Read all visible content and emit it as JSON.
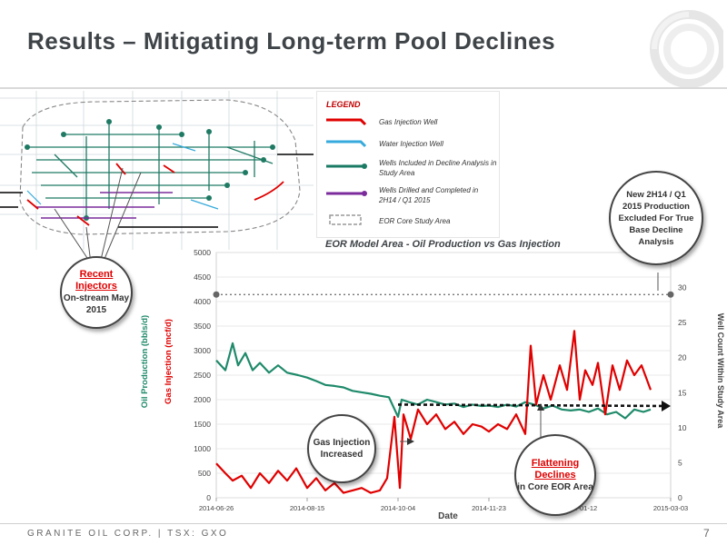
{
  "page": {
    "title": "Results – Mitigating Long-term Pool Declines",
    "footer": "GRANITE OIL CORP. | TSX: GXO",
    "page_number": "7"
  },
  "legend": {
    "title": "LEGEND",
    "items": [
      {
        "label": "Gas Injection Well",
        "color": "#e00000",
        "icon": "arrow-icon"
      },
      {
        "label": "Water Injection Well",
        "color": "#36aadc",
        "icon": "arrow-icon"
      },
      {
        "label": "Wells Included in Decline Analysis in Study Area",
        "color": "#1a7a64",
        "icon": "well-line-icon"
      },
      {
        "label": "Wells Drilled and Completed in 2H14 / Q1 2015",
        "color": "#7b2b9c",
        "icon": "well-line-icon"
      },
      {
        "label": "EOR Core Study Area",
        "color": "#999999",
        "icon": "dashed-box-icon"
      }
    ]
  },
  "callouts": {
    "recent_injectors_title": "Recent Injectors",
    "recent_injectors_body": "On-stream May 2015",
    "new_production": "New 2H14 / Q1 2015 Production Excluded For True Base Decline Analysis",
    "gas_injection": "Gas Injection Increased",
    "flattening_title": "Flattening Declines",
    "flattening_body": "in Core EOR Area"
  },
  "chart_data": {
    "type": "line",
    "title": "EOR Model Area - Oil Production vs Gas Injection",
    "xlabel": "Date",
    "ylabel_left": [
      "Oil Production (bbls/d)",
      "Gas Injection (mcf/d)"
    ],
    "ylabel_right": "Well Count Within Study Area",
    "x_ticks": [
      "2014-06-26",
      "2014-08-15",
      "2014-10-04",
      "2014-11-23",
      "2015-01-12",
      "2015-03-03"
    ],
    "x_range": [
      "2014-06-26",
      "2015-03-03"
    ],
    "ylim_left": [
      0,
      5000
    ],
    "y_ticks_left": [
      0,
      500,
      1000,
      1500,
      2000,
      2500,
      3000,
      3500,
      4000,
      4500,
      5000
    ],
    "ylim_right": [
      0,
      35
    ],
    "y_ticks_right": [
      0,
      5,
      10,
      15,
      20,
      25,
      30,
      35
    ],
    "grid": true,
    "series": [
      {
        "name": "Oil Production (bbls/d)",
        "color": "#1f8a6a",
        "axis": "left",
        "points": [
          [
            "2014-06-26",
            2800
          ],
          [
            "2014-07-01",
            2600
          ],
          [
            "2014-07-05",
            3150
          ],
          [
            "2014-07-08",
            2700
          ],
          [
            "2014-07-12",
            2950
          ],
          [
            "2014-07-16",
            2600
          ],
          [
            "2014-07-20",
            2750
          ],
          [
            "2014-07-25",
            2550
          ],
          [
            "2014-07-30",
            2700
          ],
          [
            "2014-08-04",
            2550
          ],
          [
            "2014-08-10",
            2500
          ],
          [
            "2014-08-15",
            2450
          ],
          [
            "2014-08-20",
            2380
          ],
          [
            "2014-08-25",
            2300
          ],
          [
            "2014-08-30",
            2280
          ],
          [
            "2014-09-04",
            2250
          ],
          [
            "2014-09-09",
            2180
          ],
          [
            "2014-09-14",
            2150
          ],
          [
            "2014-09-19",
            2120
          ],
          [
            "2014-09-24",
            2080
          ],
          [
            "2014-09-29",
            2050
          ],
          [
            "2014-10-04",
            1650
          ],
          [
            "2014-10-06",
            2000
          ],
          [
            "2014-10-10",
            1950
          ],
          [
            "2014-10-15",
            1900
          ],
          [
            "2014-10-20",
            2000
          ],
          [
            "2014-10-25",
            1950
          ],
          [
            "2014-10-30",
            1900
          ],
          [
            "2014-11-04",
            1920
          ],
          [
            "2014-11-09",
            1850
          ],
          [
            "2014-11-14",
            1900
          ],
          [
            "2014-11-19",
            1870
          ],
          [
            "2014-11-23",
            1880
          ],
          [
            "2014-11-28",
            1850
          ],
          [
            "2014-12-03",
            1900
          ],
          [
            "2014-12-08",
            1860
          ],
          [
            "2014-12-13",
            1950
          ],
          [
            "2014-12-18",
            1900
          ],
          [
            "2014-12-23",
            1820
          ],
          [
            "2014-12-28",
            1880
          ],
          [
            "2015-01-02",
            1800
          ],
          [
            "2015-01-07",
            1780
          ],
          [
            "2015-01-12",
            1800
          ],
          [
            "2015-01-17",
            1750
          ],
          [
            "2015-01-22",
            1820
          ],
          [
            "2015-01-27",
            1700
          ],
          [
            "2015-02-01",
            1750
          ],
          [
            "2015-02-06",
            1620
          ],
          [
            "2015-02-11",
            1800
          ],
          [
            "2015-02-16",
            1750
          ],
          [
            "2015-02-20",
            1800
          ]
        ]
      },
      {
        "name": "Gas Injection (mcf/d)",
        "color": "#e00000",
        "axis": "left",
        "points": [
          [
            "2014-06-26",
            700
          ],
          [
            "2014-07-01",
            500
          ],
          [
            "2014-07-05",
            350
          ],
          [
            "2014-07-10",
            450
          ],
          [
            "2014-07-15",
            200
          ],
          [
            "2014-07-20",
            500
          ],
          [
            "2014-07-25",
            300
          ],
          [
            "2014-07-30",
            550
          ],
          [
            "2014-08-04",
            350
          ],
          [
            "2014-08-09",
            600
          ],
          [
            "2014-08-15",
            200
          ],
          [
            "2014-08-20",
            400
          ],
          [
            "2014-08-25",
            150
          ],
          [
            "2014-08-30",
            300
          ],
          [
            "2014-09-04",
            100
          ],
          [
            "2014-09-09",
            150
          ],
          [
            "2014-09-14",
            200
          ],
          [
            "2014-09-19",
            100
          ],
          [
            "2014-09-24",
            150
          ],
          [
            "2014-09-28",
            400
          ],
          [
            "2014-10-02",
            1650
          ],
          [
            "2014-10-05",
            200
          ],
          [
            "2014-10-07",
            1700
          ],
          [
            "2014-10-11",
            1200
          ],
          [
            "2014-10-15",
            1800
          ],
          [
            "2014-10-20",
            1500
          ],
          [
            "2014-10-25",
            1700
          ],
          [
            "2014-10-30",
            1400
          ],
          [
            "2014-11-04",
            1550
          ],
          [
            "2014-11-09",
            1300
          ],
          [
            "2014-11-14",
            1500
          ],
          [
            "2014-11-19",
            1450
          ],
          [
            "2014-11-23",
            1350
          ],
          [
            "2014-11-28",
            1500
          ],
          [
            "2014-12-03",
            1400
          ],
          [
            "2014-12-08",
            1700
          ],
          [
            "2014-12-13",
            1300
          ],
          [
            "2014-12-16",
            3100
          ],
          [
            "2014-12-19",
            1900
          ],
          [
            "2014-12-23",
            2500
          ],
          [
            "2014-12-27",
            2000
          ],
          [
            "2015-01-01",
            2700
          ],
          [
            "2015-01-05",
            2200
          ],
          [
            "2015-01-09",
            3400
          ],
          [
            "2015-01-12",
            2000
          ],
          [
            "2015-01-15",
            2600
          ],
          [
            "2015-01-19",
            2300
          ],
          [
            "2015-01-22",
            2750
          ],
          [
            "2015-01-26",
            1700
          ],
          [
            "2015-01-30",
            2700
          ],
          [
            "2015-02-03",
            2200
          ],
          [
            "2015-02-07",
            2800
          ],
          [
            "2015-02-11",
            2500
          ],
          [
            "2015-02-15",
            2700
          ],
          [
            "2015-02-20",
            2200
          ]
        ]
      },
      {
        "name": "Well Count Within Study Area",
        "color": "#777777",
        "axis": "right",
        "style": "dotted",
        "points": [
          [
            "2014-06-26",
            29
          ],
          [
            "2015-03-03",
            29
          ]
        ]
      },
      {
        "name": "Decline trend",
        "color": "#111111",
        "axis": "left",
        "style": "dotted-arrow",
        "points": [
          [
            "2014-10-04",
            1900
          ],
          [
            "2015-03-03",
            1870
          ]
        ]
      }
    ]
  }
}
